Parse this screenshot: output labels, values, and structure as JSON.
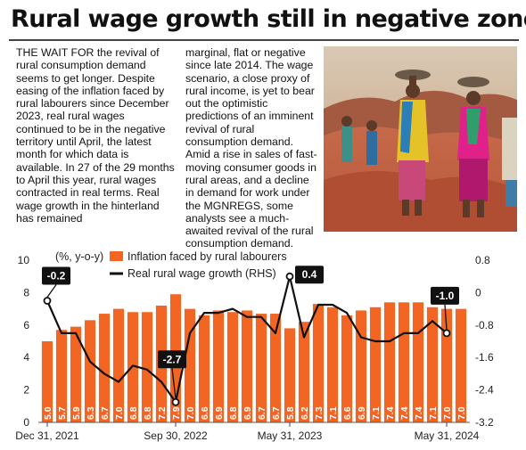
{
  "headline": "Rural wage growth still in negative zone",
  "article": {
    "col1": "THE WAIT FOR the revival of rural consumption demand seems to get longer. Despite easing of the inflation faced by rural labourers since December 2023, real rural wages continued to be in the negative territory until April, the latest month for which data is available. In 27 of the 29 months to April this year, rural wages contracted in real terms. Real wage growth in the hinterland has remained",
    "col2": "marginal, flat or negative since late 2014. The wage scenario, a close proxy of rural income, is yet to bear out the optimistic predictions of an imminent revival of rural consumption demand. Amid a rise in sales of fast-moving consumer goods in rural areas, and a decline in demand for work under the MGNREGS, some analysts see a much-awaited revival of the rural consumption demand."
  },
  "photo": {
    "subject": "women-labourers-carrying-pans-on-heads"
  },
  "chart_data": {
    "type": "bar+line",
    "unit_label": "(%, y-o-y)",
    "legend": [
      {
        "label": "Inflation faced by rural labourers",
        "color": "#f26522",
        "kind": "bar"
      },
      {
        "label": "Real rural wage growth (RHS)",
        "color": "#111111",
        "kind": "line"
      }
    ],
    "x_tick_labels": [
      "Dec 31, 2021",
      "Sep 30, 2022",
      "May 31, 2023",
      "May 31, 2024"
    ],
    "x_tick_indices": [
      0,
      9,
      17,
      28
    ],
    "left_axis": {
      "ylim": [
        0,
        10
      ],
      "ticks": [
        "0",
        "2",
        "4",
        "6",
        "8",
        "10"
      ]
    },
    "right_axis": {
      "ylim": [
        -3.2,
        0.8
      ],
      "ticks": [
        "0.8",
        "0",
        "-0.8",
        "-1.6",
        "-2.4",
        "-3.2"
      ]
    },
    "bars": [
      5.0,
      5.7,
      5.9,
      6.3,
      6.7,
      7.0,
      6.8,
      6.8,
      7.2,
      7.9,
      7.0,
      6.6,
      6.9,
      6.8,
      6.9,
      6.7,
      6.7,
      5.8,
      6.2,
      7.3,
      7.1,
      6.6,
      6.9,
      7.1,
      7.4,
      7.4,
      7.4,
      7.1,
      7.0,
      7.0
    ],
    "bar_labels": [
      "5.0",
      "5.7",
      "5.9",
      "6.3",
      "6.7",
      "7.0",
      "6.8",
      "6.8",
      "7.2",
      "7.9",
      "7.0",
      "6.6",
      "6.9",
      "6.8",
      "6.9",
      "6.7",
      "6.7",
      "5.8",
      "6.2",
      "7.3",
      "7.1",
      "6.6",
      "6.9",
      "7.1",
      "7.4",
      "7.4",
      "7.4",
      "7.1",
      "7.0",
      "7.0"
    ],
    "line": [
      -0.2,
      -1.0,
      -1.0,
      -1.7,
      -2.0,
      -2.2,
      -1.8,
      -1.9,
      -2.2,
      -2.7,
      -1.0,
      -0.5,
      -0.5,
      -0.4,
      -0.6,
      -0.6,
      -1.0,
      0.4,
      -1.1,
      -0.3,
      -0.3,
      -0.5,
      -1.1,
      -1.2,
      -1.2,
      -1.0,
      -1.0,
      -0.7,
      -1.0
    ],
    "callouts": [
      {
        "index": 0,
        "label": "-0.2"
      },
      {
        "index": 9,
        "label": "-2.7"
      },
      {
        "index": 17,
        "label": "0.4"
      },
      {
        "index": 28,
        "label": "-1.0"
      }
    ],
    "grid": false
  }
}
